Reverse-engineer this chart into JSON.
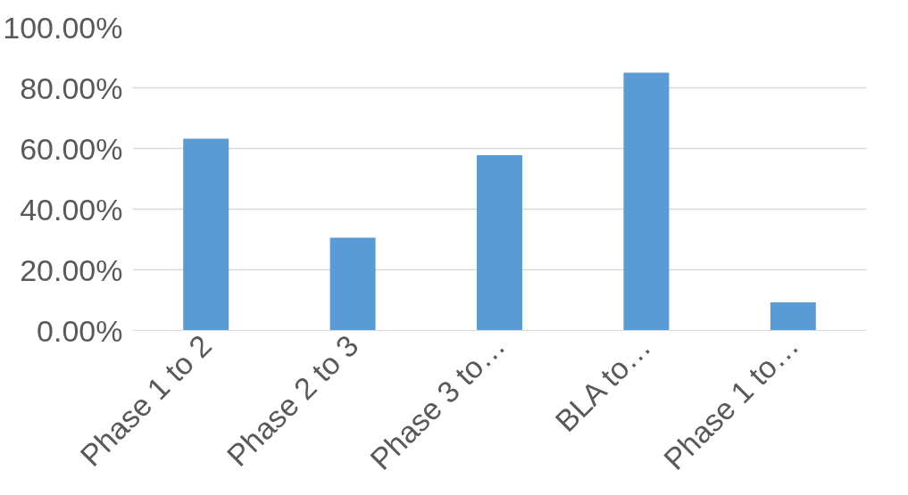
{
  "chart_data": {
    "type": "bar",
    "categories": [
      "Phase 1 to 2",
      "Phase 2 to 3",
      "Phase 3 to…",
      "BLA to…",
      "Phase 1 to…"
    ],
    "values": [
      63.2,
      30.6,
      57.8,
      85.0,
      9.3
    ],
    "color": "#5b9bd5",
    "ylim": [
      0,
      100
    ],
    "yticks": [
      {
        "value": 0,
        "label": "0.00%"
      },
      {
        "value": 20,
        "label": "20.00%"
      },
      {
        "value": 40,
        "label": "40.00%"
      },
      {
        "value": 60,
        "label": "60.00%"
      },
      {
        "value": 80,
        "label": "80.00%"
      },
      {
        "value": 100,
        "label": "100.00%"
      }
    ],
    "grid": "y"
  }
}
